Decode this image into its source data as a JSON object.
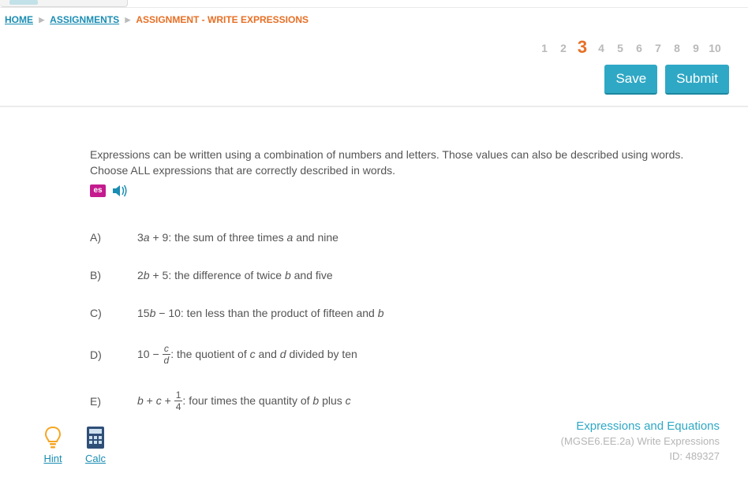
{
  "colors": {
    "brand_teal": "#2fa8c5",
    "brand_teal_dark": "#1d879f",
    "orange": "#e86f24",
    "link": "#1a8db3",
    "es_pink": "#c41c8e",
    "text": "#555555",
    "muted": "#b9b9b9",
    "meta_muted": "#b5b5b5",
    "divider": "#ececec"
  },
  "breadcrumb": {
    "home": "HOME",
    "assignments": "ASSIGNMENTS",
    "current": "ASSIGNMENT - WRITE EXPRESSIONS"
  },
  "pager": {
    "count": 10,
    "active": 3,
    "labels": [
      "1",
      "2",
      "3",
      "4",
      "5",
      "6",
      "7",
      "8",
      "9",
      "10"
    ]
  },
  "buttons": {
    "save": "Save",
    "submit": "Submit"
  },
  "question": {
    "prompt": "Expressions can be written using a combination of numbers and letters. Those values can also be described using words. Choose ALL expressions that are correctly described in words.",
    "es_label": "es",
    "options": [
      {
        "letter": "A)",
        "expr_prefix": "3",
        "expr_var1": "a",
        "expr_mid": " + 9: the sum of three times ",
        "expr_var2": "a",
        "expr_suffix": " and nine",
        "type": "plain"
      },
      {
        "letter": "B)",
        "expr_prefix": "2",
        "expr_var1": "b",
        "expr_mid": " + 5: the difference of twice ",
        "expr_var2": "b",
        "expr_suffix": " and five",
        "type": "plain"
      },
      {
        "letter": "C)",
        "expr_prefix": "15",
        "expr_var1": "b",
        "expr_mid": " − 10: ten less than the product of fifteen and ",
        "expr_var2": "b",
        "expr_suffix": "",
        "type": "plain"
      },
      {
        "letter": "D)",
        "before_frac": "10 − ",
        "frac_num": "c",
        "frac_den": "d",
        "after_frac_pre": ": the quotient of ",
        "var1": "c",
        "between": " and ",
        "var2": "d",
        "suffix": " divided by ten",
        "type": "frac_cd"
      },
      {
        "letter": "E)",
        "before_frac_var1": "b",
        "plus1": " + ",
        "before_frac_var2": "c",
        "plus2": " + ",
        "frac_num": "1",
        "frac_den": "4",
        "after_frac_pre": ": four times the quantity of ",
        "var1": "b",
        "between": " plus ",
        "var2": "c",
        "suffix": "",
        "type": "frac_14"
      }
    ]
  },
  "footer": {
    "hint": "Hint",
    "calc": "Calc",
    "topic": "Expressions and Equations",
    "standard": "(MGSE6.EE.2a) Write Expressions",
    "id": "ID: 489327"
  }
}
